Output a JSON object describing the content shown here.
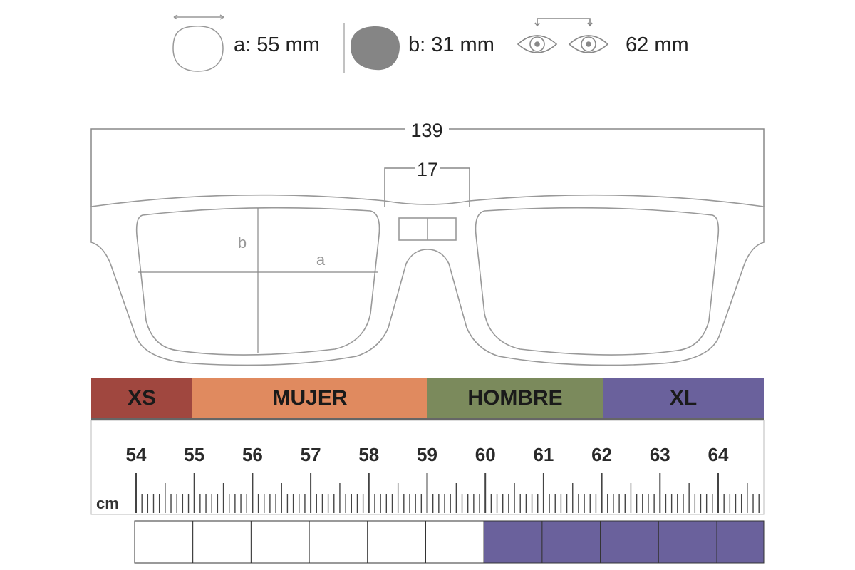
{
  "specs": {
    "lens_width": "a: 55 mm",
    "lens_height": "b: 31 mm",
    "pupil_distance": "62 mm"
  },
  "diagram": {
    "total_width": "139",
    "bridge": "17",
    "label_a": "a",
    "label_b": "b"
  },
  "size_bands": [
    {
      "label": "XS",
      "color": "#a0473f"
    },
    {
      "label": "MUJER",
      "color": "#e08a5f"
    },
    {
      "label": "HOMBRE",
      "color": "#7b8a5c"
    },
    {
      "label": "XL",
      "color": "#6a619c"
    }
  ],
  "ruler": {
    "unit": "cm",
    "labels": [
      "54",
      "55",
      "56",
      "57",
      "58",
      "59",
      "60",
      "61",
      "62",
      "63",
      "64"
    ]
  },
  "indicator": {
    "filled_color": "#6a619c",
    "filled": [
      false,
      false,
      false,
      false,
      false,
      false,
      true,
      true,
      true,
      true,
      true
    ]
  }
}
